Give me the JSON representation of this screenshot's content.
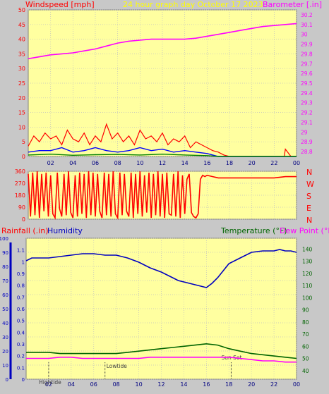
{
  "header": {
    "left_title": "Windspeed [mph]",
    "center_title": "24 hour graph day   October 17 2023",
    "right_title": "Barometer [.in]"
  },
  "colors": {
    "panel_bg": "#ffffa0",
    "frame": "#c8c8c8",
    "wind_red": "#ff0000",
    "wind_blue": "#0000ff",
    "wind_green": "#008000",
    "barometer": "#ff00ff",
    "humidity": "#0000c0",
    "temperature": "#006400",
    "dewpoint": "#ff00ff",
    "title_yellow": "#ffff00",
    "title_red": "#ff0000",
    "axis_blue": "#0000c0"
  },
  "chart_data": [
    {
      "type": "line",
      "name": "wind-barometer",
      "title": "24 hour graph day   October 17 2023",
      "ylabel": "Windspeed [mph]",
      "y2label": "Barometer [.in]",
      "x_ticks": [
        "02",
        "04",
        "06",
        "08",
        "10",
        "12",
        "14",
        "16",
        "18",
        "20",
        "22",
        "00"
      ],
      "x_range": [
        0,
        24
      ],
      "ylim": [
        0,
        50
      ],
      "y_ticks": [
        0,
        5,
        10,
        15,
        20,
        25,
        30,
        35,
        40,
        45,
        50
      ],
      "y2lim": [
        28.75,
        30.25
      ],
      "y2_ticks": [
        "28.8",
        "28.9",
        "29",
        "29.1",
        "29.2",
        "29.3",
        "29.4",
        "29.5",
        "29.6",
        "29.7",
        "29.8",
        "29.9",
        "30",
        "30.1",
        "30.2"
      ],
      "grid": true,
      "series": [
        {
          "name": "Barometer [.in]",
          "axis": "right",
          "x": [
            0,
            1,
            2,
            3,
            4,
            5,
            6,
            7,
            8,
            9,
            10,
            11,
            12,
            13,
            14,
            15,
            16,
            17,
            18,
            19,
            20,
            21,
            22,
            23,
            24
          ],
          "values": [
            29.75,
            29.77,
            29.79,
            29.8,
            29.81,
            29.83,
            29.85,
            29.88,
            29.91,
            29.93,
            29.94,
            29.95,
            29.95,
            29.95,
            29.95,
            29.96,
            29.98,
            30.0,
            30.02,
            30.04,
            30.06,
            30.08,
            30.09,
            30.1,
            30.11
          ]
        },
        {
          "name": "Wind gust",
          "axis": "left",
          "x": [
            0,
            0.5,
            1,
            1.5,
            2,
            2.5,
            3,
            3.5,
            4,
            4.5,
            5,
            5.5,
            6,
            6.5,
            7,
            7.5,
            8,
            8.5,
            9,
            9.5,
            10,
            10.5,
            11,
            11.5,
            12,
            12.5,
            13,
            13.5,
            14,
            14.5,
            15,
            15.5,
            16,
            16.5,
            17,
            17.5,
            18,
            19,
            20,
            21,
            22,
            22.9,
            23,
            23.5,
            24
          ],
          "values": [
            3.5,
            7,
            5,
            8,
            6,
            7,
            4,
            9,
            6,
            5,
            8,
            4,
            7,
            5,
            11,
            6,
            8,
            5,
            7,
            4,
            9,
            6,
            7,
            5,
            8,
            4,
            6,
            5,
            7,
            3,
            5,
            4,
            3,
            2,
            1.5,
            0.5,
            0,
            0,
            0,
            0,
            0,
            0,
            2.5,
            0,
            0
          ]
        },
        {
          "name": "Wind average",
          "axis": "left",
          "x": [
            0,
            1,
            2,
            3,
            4,
            5,
            6,
            7,
            8,
            9,
            10,
            11,
            12,
            13,
            14,
            15,
            16,
            17,
            18,
            20,
            22,
            24
          ],
          "values": [
            1.5,
            2,
            2,
            3,
            1.5,
            2,
            3,
            2,
            1.5,
            2,
            3,
            2,
            2.5,
            1.5,
            2,
            1.5,
            1,
            0,
            0,
            0,
            0,
            0
          ]
        },
        {
          "name": "Wind low",
          "axis": "left",
          "x": [
            0,
            2,
            4,
            6,
            8,
            10,
            12,
            14,
            16,
            17,
            24
          ],
          "values": [
            0.5,
            0.8,
            0.4,
            0.6,
            0.7,
            0.5,
            0.8,
            0.5,
            0.3,
            0,
            0
          ]
        }
      ]
    },
    {
      "type": "line",
      "name": "wind-direction",
      "y_ticks": [
        "360",
        "270",
        "180",
        "90",
        "0"
      ],
      "ylim": [
        0,
        360
      ],
      "direction_labels": [
        "N",
        "W",
        "S",
        "E",
        "N"
      ],
      "x_range": [
        0,
        24
      ],
      "grid": true,
      "series": [
        {
          "name": "Wind direction",
          "x": [
            0,
            0.2,
            0.4,
            0.6,
            0.8,
            1.0,
            1.2,
            1.4,
            1.6,
            1.8,
            2.0,
            2.2,
            2.4,
            2.6,
            2.8,
            3.0,
            3.2,
            3.4,
            3.6,
            3.8,
            4.0,
            4.2,
            4.4,
            4.6,
            4.8,
            5.0,
            5.2,
            5.4,
            5.6,
            5.8,
            6.0,
            6.2,
            6.4,
            6.6,
            6.8,
            7.0,
            7.2,
            7.4,
            7.6,
            7.8,
            8.0,
            8.2,
            8.4,
            8.6,
            8.8,
            9.0,
            9.2,
            9.4,
            9.6,
            9.8,
            10.0,
            10.2,
            10.4,
            10.6,
            10.8,
            11.0,
            11.2,
            11.4,
            11.6,
            11.8,
            12.0,
            12.2,
            12.4,
            12.6,
            12.8,
            13.0,
            13.2,
            13.4,
            13.6,
            13.8,
            14.0,
            14.2,
            14.4,
            14.6,
            14.8,
            15.0,
            15.2,
            15.4,
            15.6,
            15.8,
            16.0,
            16.5,
            17,
            18,
            19,
            20,
            21,
            22,
            23,
            24
          ],
          "values": [
            340,
            20,
            350,
            30,
            360,
            10,
            340,
            60,
            350,
            20,
            330,
            40,
            10,
            350,
            80,
            20,
            340,
            30,
            360,
            50,
            10,
            330,
            20,
            350,
            40,
            340,
            10,
            360,
            30,
            350,
            20,
            340,
            60,
            10,
            350,
            30,
            340,
            20,
            360,
            40,
            10,
            350,
            30,
            340,
            60,
            20,
            350,
            10,
            340,
            40,
            360,
            20,
            330,
            50,
            350,
            10,
            340,
            30,
            360,
            20,
            340,
            10,
            350,
            40,
            30,
            340,
            20,
            360,
            10,
            330,
            40,
            300,
            340,
            50,
            20,
            10,
            40,
            300,
            330,
            320,
            330,
            320,
            310,
            310,
            310,
            310,
            310,
            310,
            320,
            320
          ]
        }
      ]
    },
    {
      "type": "line",
      "name": "humidity-temperature",
      "left_title": "Rainfall (.in)",
      "left_title2": "Humidity",
      "right_title": "Temperature (°F)",
      "right_title2": "Dew Point (°F)",
      "x_ticks": [
        "02",
        "04",
        "06",
        "08",
        "10",
        "12",
        "14",
        "16",
        "18",
        "20",
        "22",
        "00"
      ],
      "x_range": [
        0,
        24
      ],
      "rain_ticks": [
        "0",
        "0.1",
        "0.2",
        "0.3",
        "0.4",
        "0.5",
        "0.6",
        "0.7",
        "0.8",
        "0.9",
        "1",
        "1.1"
      ],
      "rain_lim": [
        0,
        1.2
      ],
      "humidity_ticks": [
        "0",
        "10",
        "20",
        "30",
        "40",
        "50",
        "60",
        "70",
        "80",
        "90",
        "100"
      ],
      "ylim": [
        0,
        100
      ],
      "y2_ticks": [
        "40",
        "50",
        "60",
        "70",
        "80",
        "90",
        "100",
        "110",
        "120",
        "130",
        "140"
      ],
      "y2lim": [
        32.9,
        148.9
      ],
      "grid": true,
      "annotations": [
        {
          "label": "Hightide",
          "x": 2.0
        },
        {
          "label": "Lowtide",
          "x": 7.0
        },
        {
          "label": "Sun Set",
          "x": 18.2
        }
      ],
      "series": [
        {
          "name": "Humidity",
          "axis": "left",
          "x": [
            0,
            0.5,
            1,
            2,
            3,
            4,
            5,
            6,
            7,
            8,
            9,
            10,
            11,
            12,
            13,
            13.5,
            14,
            14.5,
            15,
            15.5,
            16,
            16.5,
            17,
            17.5,
            18,
            19,
            20,
            21,
            22,
            22.5,
            23,
            23.5,
            24
          ],
          "values": [
            84,
            86,
            86,
            86,
            87,
            88,
            89,
            89,
            88,
            88,
            86,
            83,
            79,
            76,
            72,
            70,
            69,
            68,
            67,
            66,
            65,
            68,
            72,
            77,
            82,
            86,
            90,
            91,
            91,
            92,
            91,
            91,
            90
          ]
        },
        {
          "name": "Temperature (°F)",
          "axis": "right",
          "x": [
            0,
            1,
            2,
            3,
            4,
            5,
            6,
            7,
            8,
            9,
            10,
            11,
            12,
            13,
            14,
            15,
            16,
            17,
            18,
            19,
            20,
            21,
            22,
            23,
            24
          ],
          "values": [
            55,
            55,
            55,
            54,
            54,
            54,
            54,
            54,
            54,
            55,
            56,
            57,
            58,
            59,
            60,
            61,
            62,
            61,
            58,
            56,
            54,
            53,
            52,
            51,
            50
          ]
        },
        {
          "name": "Dew Point (°F)",
          "axis": "right",
          "x": [
            0,
            1,
            2,
            3,
            4,
            5,
            6,
            7,
            8,
            9,
            10,
            11,
            12,
            13,
            14,
            15,
            16,
            17,
            18,
            19,
            20,
            21,
            22,
            23,
            24
          ],
          "values": [
            50,
            50,
            50,
            51,
            51,
            50,
            50,
            50,
            50,
            50,
            50,
            51,
            51,
            51,
            51,
            51,
            51,
            51,
            51,
            50,
            49,
            48,
            48,
            47,
            47
          ]
        }
      ]
    }
  ]
}
